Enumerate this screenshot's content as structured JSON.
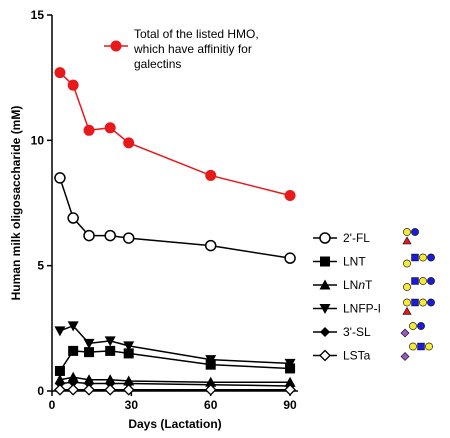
{
  "chart_data": {
    "type": "line",
    "xlabel": "Days (Lactation)",
    "ylabel": "Human milk oligosaccharide (mM)",
    "xlim": [
      0,
      93
    ],
    "ylim": [
      0,
      15
    ],
    "xticks": [
      0,
      30,
      60,
      90
    ],
    "yticks": [
      0,
      5,
      10,
      15
    ],
    "grid": false,
    "legend_placement": "right",
    "x": [
      3,
      8,
      14,
      22,
      29,
      60,
      90
    ],
    "annotation": {
      "lines": [
        "Total of the listed HMO,",
        "which have affinitiy for",
        "galectins"
      ]
    },
    "series": [
      {
        "name": "",
        "values": [
          12.7,
          12.2,
          10.4,
          10.5,
          9.9,
          8.6,
          7.8
        ],
        "color": "#e8191b",
        "marker": "circle-filled",
        "legend": false
      },
      {
        "name": "2'-FL",
        "values": [
          8.5,
          6.9,
          6.2,
          6.2,
          6.1,
          5.8,
          5.3
        ],
        "color": "#000000",
        "marker": "circle-open",
        "legend": true
      },
      {
        "name": "LNT",
        "values": [
          0.8,
          1.6,
          1.55,
          1.6,
          1.5,
          1.05,
          0.9
        ],
        "color": "#000000",
        "marker": "square",
        "legend": true
      },
      {
        "name": "LNnT",
        "values": [
          0.45,
          0.55,
          0.45,
          0.45,
          0.4,
          0.35,
          0.35
        ],
        "color": "#000000",
        "marker": "triangle-up",
        "legend": true
      },
      {
        "name": "LNFP-I",
        "values": [
          2.4,
          2.6,
          1.9,
          2.0,
          1.8,
          1.25,
          1.1
        ],
        "color": "#000000",
        "marker": "triangle-down",
        "legend": true
      },
      {
        "name": "3'-SL",
        "values": [
          0.3,
          0.35,
          0.3,
          0.3,
          0.3,
          0.25,
          0.2
        ],
        "color": "#000000",
        "marker": "diamond-filled",
        "legend": true
      },
      {
        "name": "LSTa",
        "values": [
          0.05,
          0.05,
          0.05,
          0.05,
          0.05,
          0.05,
          0.05
        ],
        "color": "#000000",
        "marker": "diamond-open",
        "legend": true
      }
    ],
    "structure_icon_colors": {
      "galactose": "#f4e838",
      "glcnac": "#1c1cd8",
      "glucose": "#1c1cd8",
      "fucose": "#e8191b",
      "sialic_acid": "#9b59c6"
    }
  }
}
